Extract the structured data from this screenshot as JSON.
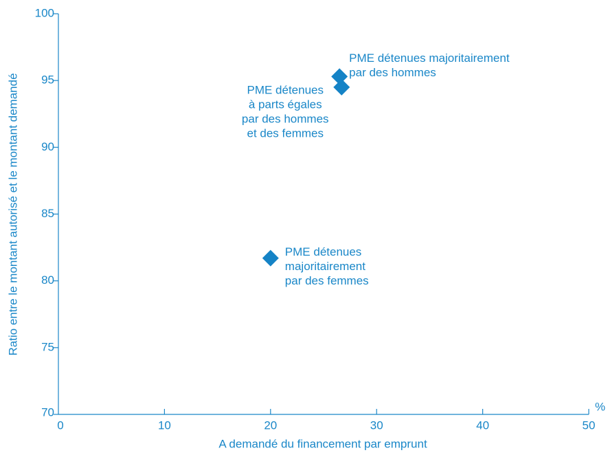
{
  "chart_data": {
    "type": "scatter",
    "x_label": "A demandé du financement par emprunt",
    "y_label": "Ratio entre le montant autorisé et le montant demandé",
    "x_unit": "%",
    "x": [
      26.5,
      26.7,
      20
    ],
    "values": [
      95.3,
      94.5,
      81.7
    ],
    "labels": [
      [
        "PME détenues majoritairement",
        "par des hommes"
      ],
      [
        "PME détenues",
        "à parts égales",
        "par des hommes",
        "et des femmes"
      ],
      [
        "PME détenues",
        "majoritairement",
        "par des femmes"
      ]
    ],
    "color": "#1583c6",
    "xlim": [
      0,
      50
    ],
    "xticks": [
      0,
      10,
      20,
      30,
      40,
      50
    ],
    "ylim": [
      70,
      100
    ],
    "yticks": [
      70,
      75,
      80,
      85,
      90,
      95,
      100
    ],
    "grid": false
  }
}
